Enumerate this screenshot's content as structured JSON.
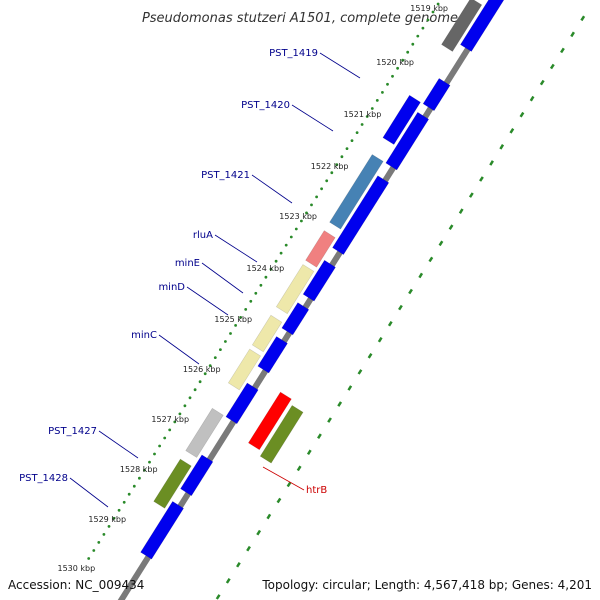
{
  "title": "Pseudomonas stutzeri A1501, complete genome",
  "accession": "Accession: NC_009434",
  "topology": "Topology: circular; Length: 4,567,418 bp; Genes: 4,201",
  "colors": {
    "backbone": "#8a8a8a",
    "forward_dots": "#2a8a2a",
    "reverse_dashes": "#2a8a2a",
    "label_forward": "#00008b",
    "label_reverse": "#cc0000",
    "cds_default": "#0000ee"
  },
  "ticks": [
    "1519 kbp",
    "1520 kbp",
    "1521 kbp",
    "1522 kbp",
    "1523 kbp",
    "1524 kbp",
    "1525 kbp",
    "1526 kbp",
    "1527 kbp",
    "1528 kbp",
    "1529 kbp",
    "1530 kbp"
  ],
  "genes": [
    {
      "label": "PST_1419",
      "color": "#666666",
      "strand": "+"
    },
    {
      "label": "PST_1420",
      "color": "#0000ee",
      "strand": "+"
    },
    {
      "label": "PST_1421",
      "color": "#4682b4",
      "strand": "+"
    },
    {
      "label": "rluA",
      "color": "#f08080",
      "strand": "+"
    },
    {
      "label": "minE",
      "color": "#eee8aa",
      "strand": "+"
    },
    {
      "label": "minD",
      "color": "#eee8aa",
      "strand": "+"
    },
    {
      "label": "minC",
      "color": "#eee8aa",
      "strand": "+"
    },
    {
      "label": "PST_1427",
      "color": "#c0c0c0",
      "strand": "+"
    },
    {
      "label": "PST_1428",
      "color": "#6b8e23",
      "strand": "+"
    },
    {
      "label": "htrB",
      "color": "#6b8e23",
      "strand": "-"
    }
  ]
}
